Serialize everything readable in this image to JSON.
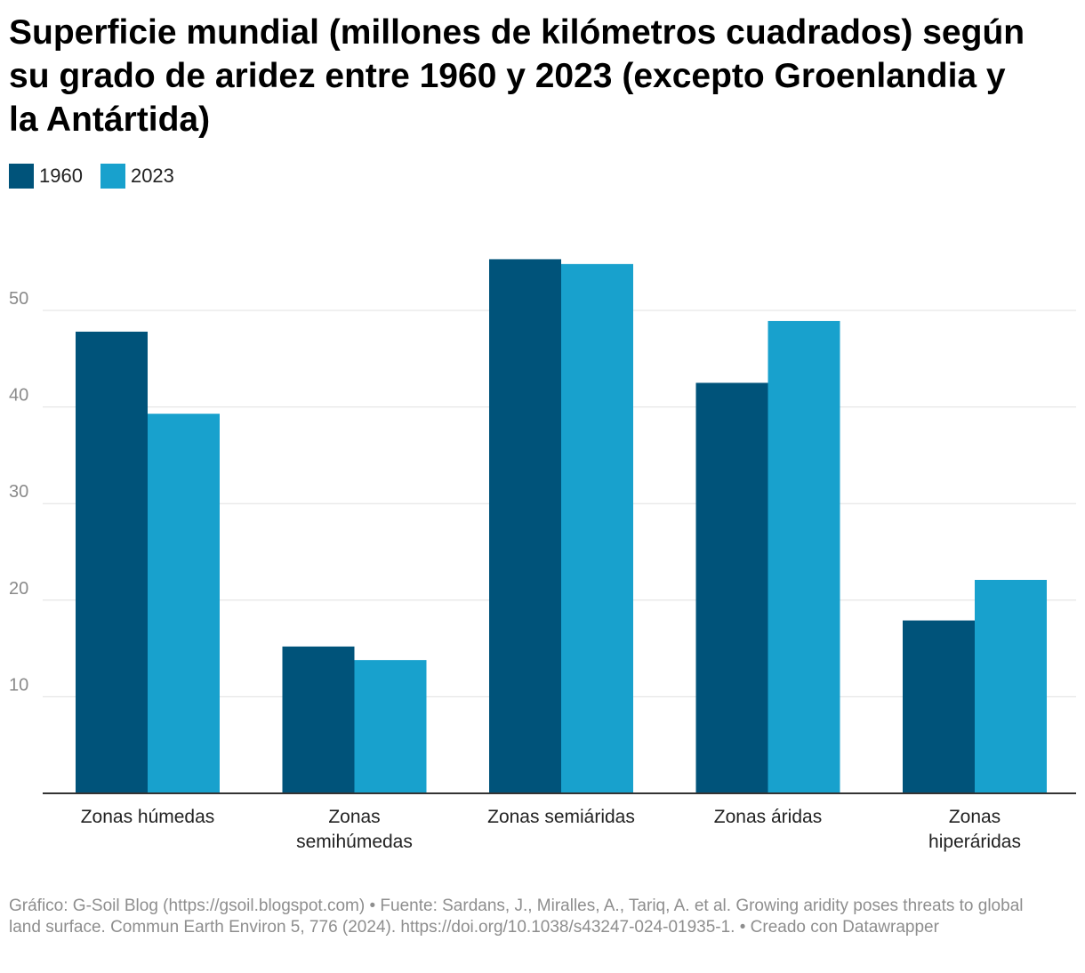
{
  "chart_data": {
    "type": "bar",
    "title": "Superficie mundial (millones de kilómetros cuadrados) según su grado de aridez entre 1960 y 2023 (excepto Groenlandia y la Antártida)",
    "categories": [
      "Zonas húmedas",
      "Zonas semihúmedas",
      "Zonas semiáridas",
      "Zonas áridas",
      "Zonas hiperáridas"
    ],
    "series": [
      {
        "name": "1960",
        "color": "#00537a",
        "values": [
          47.8,
          15.2,
          55.3,
          42.5,
          17.9
        ]
      },
      {
        "name": "2023",
        "color": "#18a1cd",
        "values": [
          39.3,
          13.8,
          54.8,
          48.9,
          22.1
        ]
      }
    ],
    "yticks": [
      10,
      20,
      30,
      40,
      50
    ],
    "ylim": [
      0,
      60
    ],
    "xlabel": "",
    "ylabel": "",
    "grid": true,
    "legend": "top-left"
  },
  "footer": "Gráfico: G-Soil Blog (https://gsoil.blogspot.com) • Fuente: Sardans, J., Miralles, A., Tariq, A. et al. Growing aridity poses threats to global land surface. Commun Earth Environ 5, 776 (2024). https://doi.org/10.1038/s43247-024-01935-1. • Creado con Datawrapper"
}
